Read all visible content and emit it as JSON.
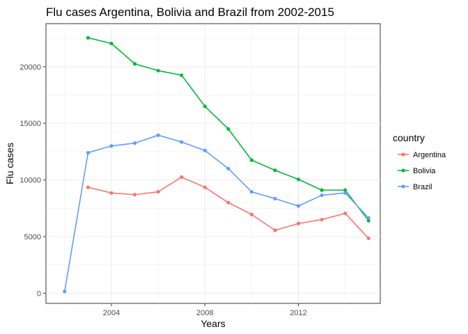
{
  "chart_data": {
    "type": "line",
    "title": "Flu cases Argentina, Bolivia and Brazil from 2002-2015",
    "xlabel": "Years",
    "ylabel": "Flu cases",
    "xlim": [
      2001.2,
      2015.5
    ],
    "ylim": [
      -900,
      23800
    ],
    "x_ticks": [
      2004,
      2008,
      2012
    ],
    "y_ticks": [
      0,
      5000,
      10000,
      15000,
      20000
    ],
    "x_tick_labels": [
      "2004",
      "2008",
      "2012"
    ],
    "y_tick_labels": [
      "0",
      "5000",
      "10000",
      "15000",
      "20000"
    ],
    "grid": true,
    "legend": {
      "title": "country",
      "position": "right"
    },
    "series": [
      {
        "name": "Argentina",
        "color": "#F8766D",
        "x": [
          2003,
          2004,
          2005,
          2006,
          2007,
          2008,
          2009,
          2010,
          2011,
          2012,
          2013,
          2014,
          2015
        ],
        "y": [
          9350,
          8850,
          8700,
          8950,
          10250,
          9350,
          8000,
          6950,
          5550,
          6150,
          6500,
          7050,
          4850
        ]
      },
      {
        "name": "Bolivia",
        "color": "#00BA38",
        "x": [
          2003,
          2004,
          2005,
          2006,
          2007,
          2008,
          2009,
          2010,
          2011,
          2012,
          2013,
          2014,
          2015
        ],
        "y": [
          22550,
          22050,
          20250,
          19650,
          19250,
          16500,
          14500,
          11750,
          10850,
          10050,
          9100,
          9100,
          6400
        ]
      },
      {
        "name": "Brazil",
        "color": "#619CFF",
        "x": [
          2002,
          2003,
          2004,
          2005,
          2006,
          2007,
          2008,
          2009,
          2010,
          2011,
          2012,
          2013,
          2014,
          2015
        ],
        "y": [
          150,
          12400,
          13000,
          13250,
          13950,
          13350,
          12600,
          11000,
          8950,
          8350,
          7700,
          8650,
          8850,
          6650
        ]
      }
    ]
  }
}
